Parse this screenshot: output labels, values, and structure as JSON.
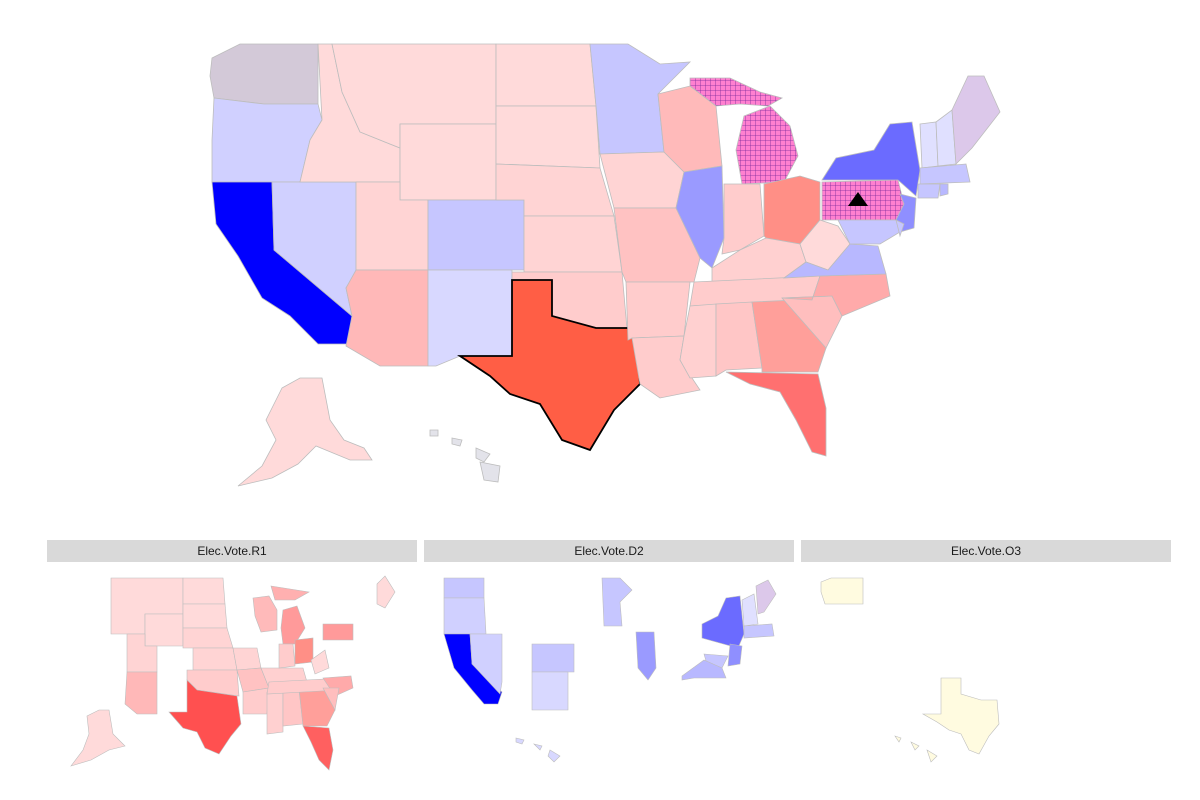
{
  "facets": [
    {
      "label": "Elec.Vote.R1"
    },
    {
      "label": "Elec.Vote.D2"
    },
    {
      "label": "Elec.Vote.O3"
    }
  ],
  "colors": {
    "dem_strong": "#0000ff",
    "dem_mid": "#6b6bff",
    "dem_light": "#c6c6ff",
    "rep_strong": "#ff5e45",
    "rep_mid": "#ff8a80",
    "rep_light": "#ffdada",
    "other": "#fffbe0",
    "hatch": "#ff66cc",
    "state_border": "#bdbdbd",
    "strip_bg": "#d9d9d9"
  },
  "icons": [
    "triangle-marker-icon",
    "crosshatch-pattern"
  ]
}
